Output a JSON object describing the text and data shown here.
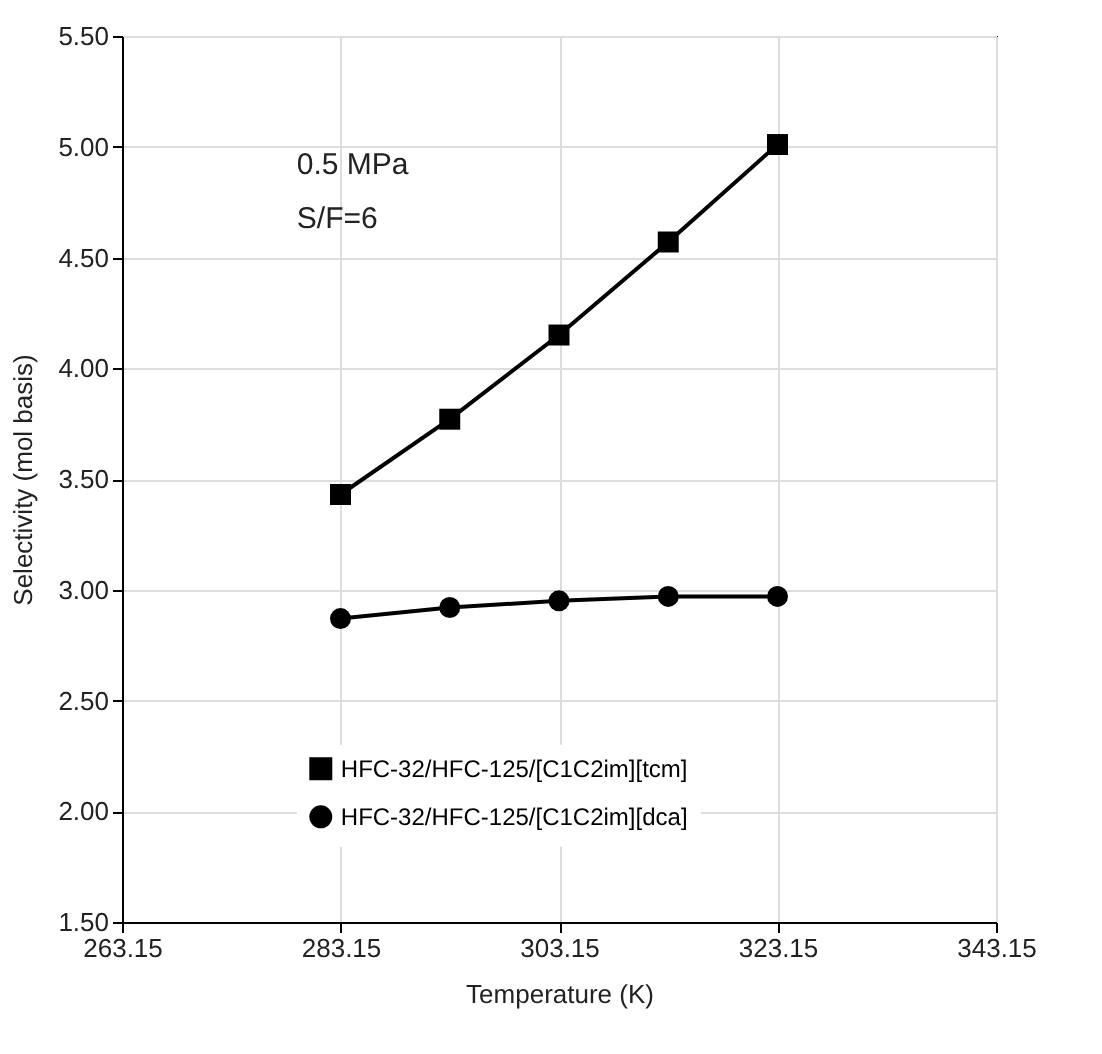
{
  "chart_data": {
    "type": "line",
    "xlabel": "Temperature (K)",
    "ylabel": "Selectivity (mol basis)",
    "x": [
      283.15,
      293.15,
      303.15,
      313.15,
      323.15
    ],
    "series": [
      {
        "name": "HFC-32/HFC-125/[C1C2im][tcm]",
        "color": "#000000",
        "marker": "square",
        "values": [
          3.43,
          3.77,
          4.15,
          4.57,
          5.01
        ]
      },
      {
        "name": "HFC-32/HFC-125/[C1C2im][dca]",
        "color": "#000000",
        "marker": "circle",
        "values": [
          2.87,
          2.92,
          2.95,
          2.97,
          2.97
        ]
      }
    ],
    "xlim": [
      263.15,
      343.15
    ],
    "xticks": [
      263.15,
      283.15,
      303.15,
      323.15,
      343.15
    ],
    "ylim": [
      1.5,
      5.5
    ],
    "yticks": [
      {
        "value": 1.5,
        "label": "1.50"
      },
      {
        "value": 2,
        "label": "2.00"
      },
      {
        "value": 2.5,
        "label": "2.50"
      },
      {
        "value": 3,
        "label": "3.00"
      },
      {
        "value": 3.5,
        "label": "3.50"
      },
      {
        "value": 4,
        "label": "4.00"
      },
      {
        "value": 4.5,
        "label": "4.50"
      },
      {
        "value": 5,
        "label": "5.00"
      },
      {
        "value": 5.5,
        "label": "5.50"
      }
    ],
    "grid": true,
    "legend": "bottom",
    "line_style": "solid",
    "annotations": [
      "0.5 MPa",
      "S/F=6"
    ]
  }
}
